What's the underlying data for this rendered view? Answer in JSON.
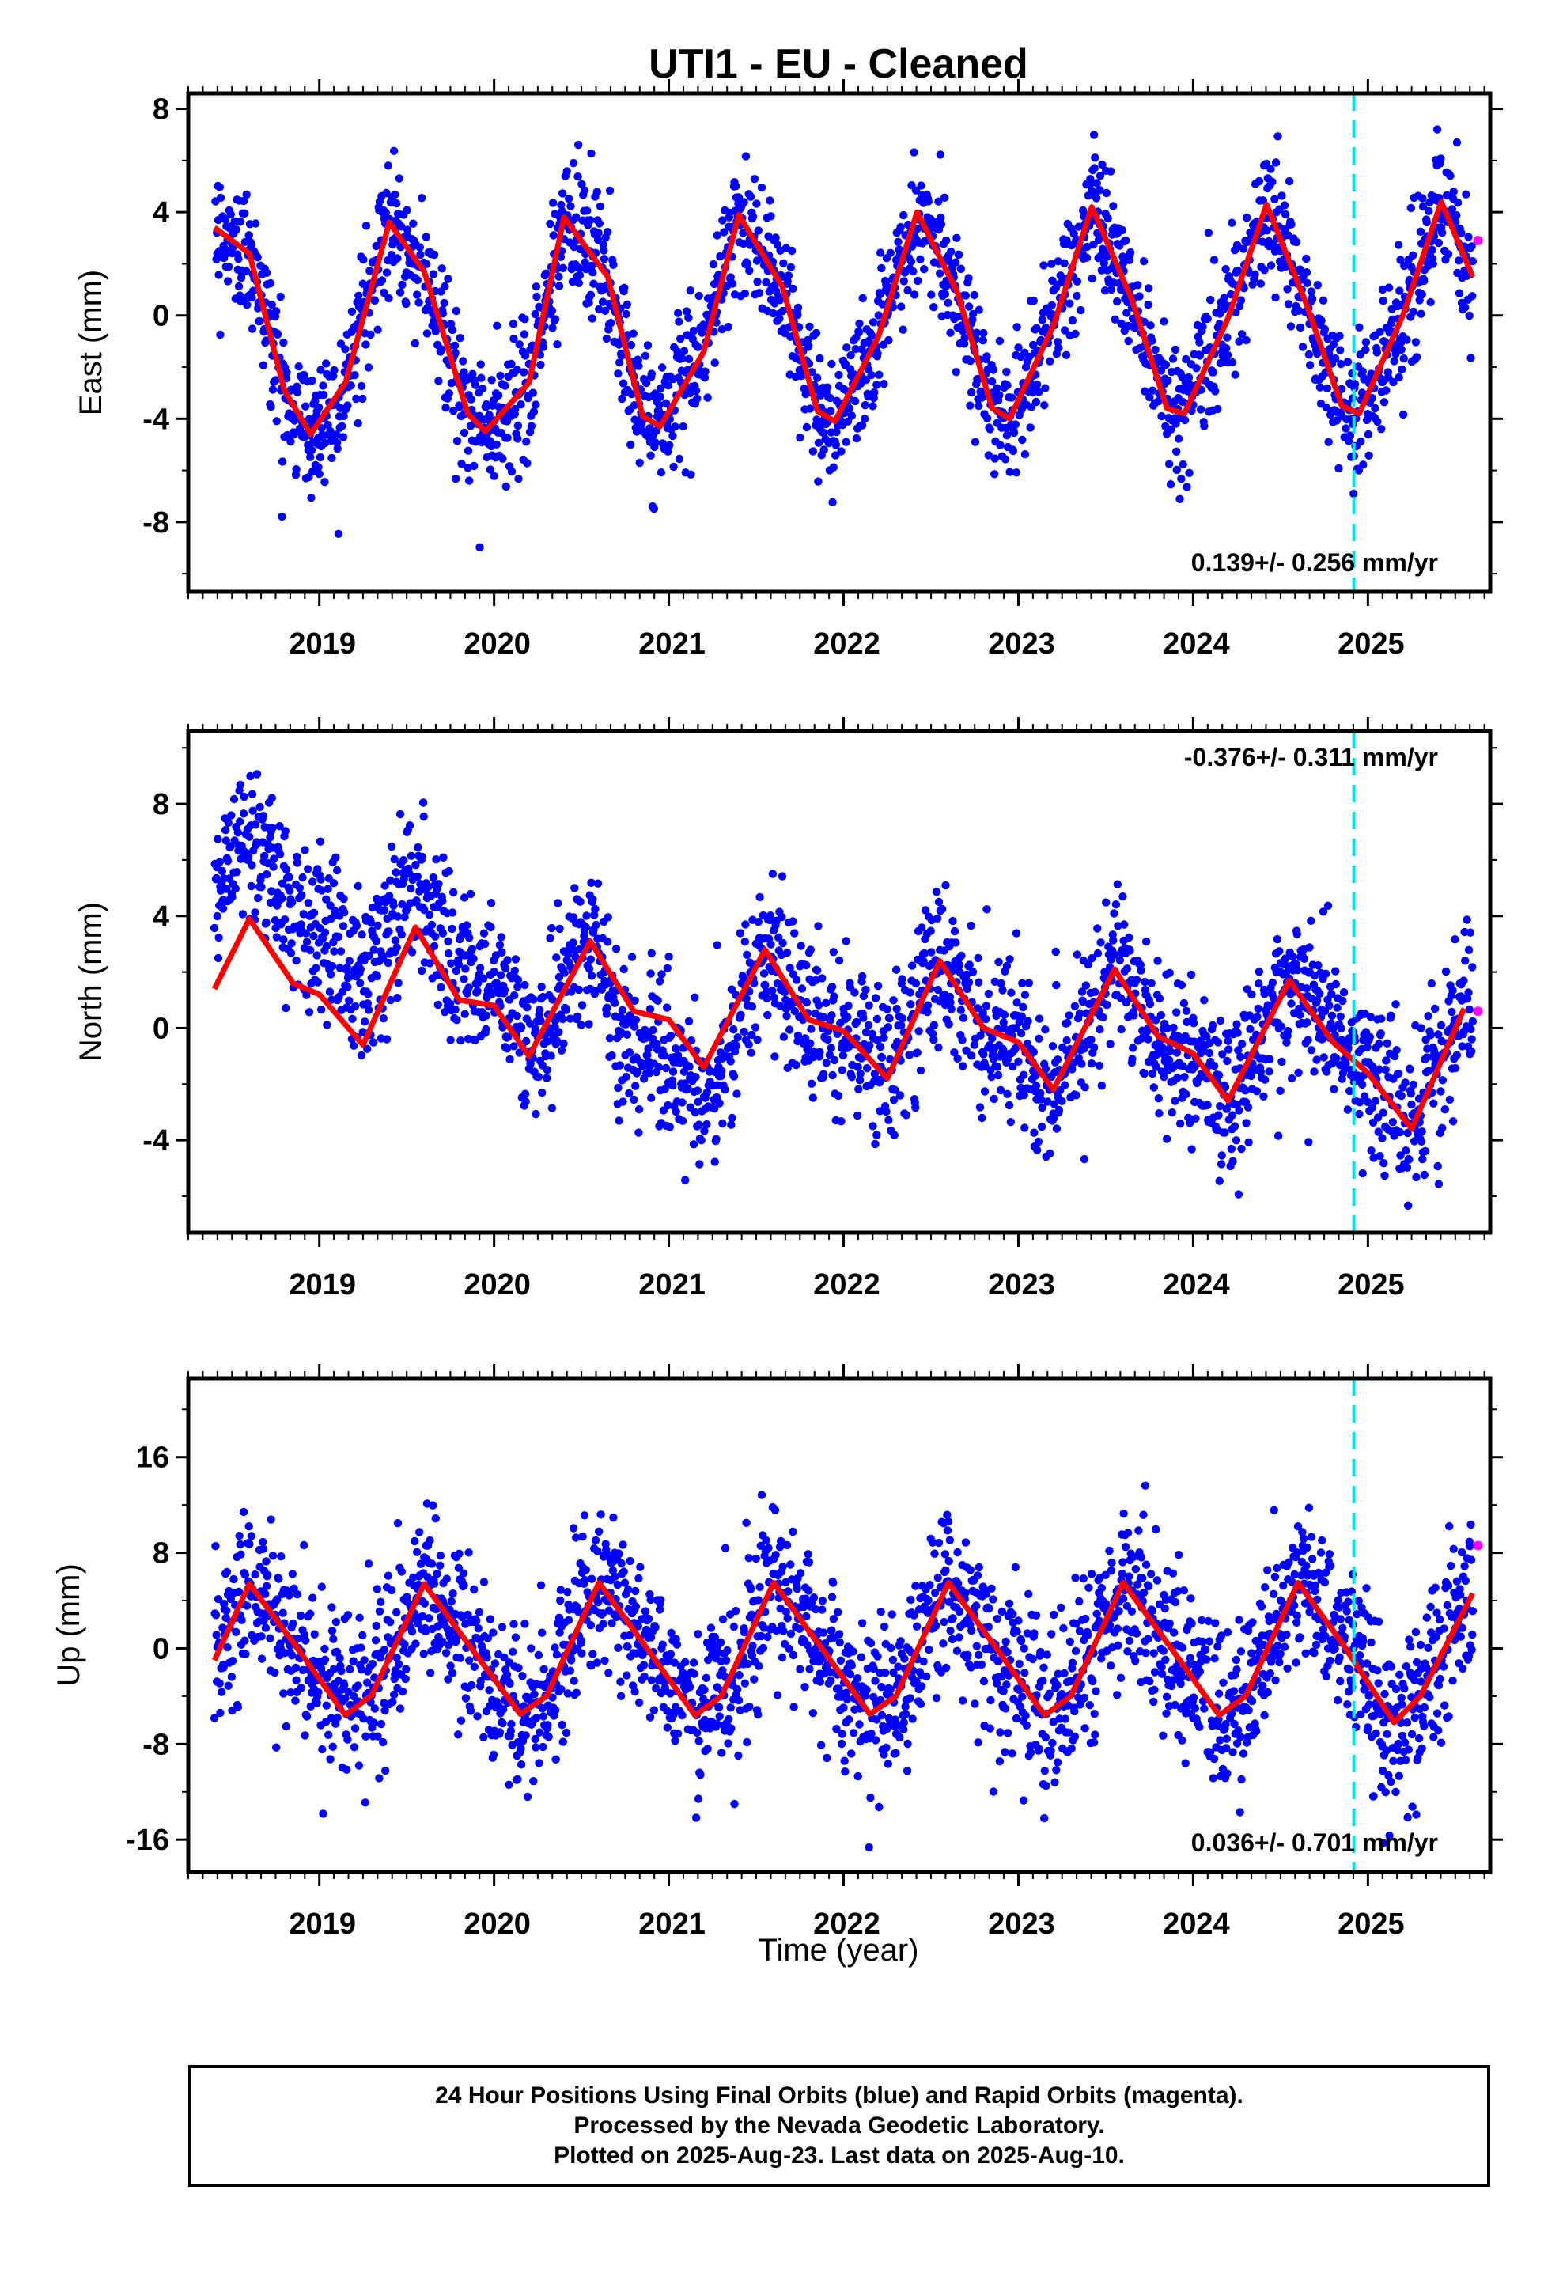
{
  "title": "UTI1  - EU - Cleaned",
  "x_axis_label": "Time (year)",
  "caption": [
    "24 Hour Positions Using Final Orbits (blue) and Rapid Orbits (magenta).",
    "Processed by the Nevada Geodetic Laboratory.",
    "Plotted on 2025-Aug-23. Last data on 2025-Aug-10."
  ],
  "colors": {
    "final_points": "#0000ff",
    "rapid_points": "#ff00ff",
    "model_curve": "#ff0000",
    "event_line": "#00e5ee"
  },
  "chart_data": [
    {
      "type": "scatter",
      "component": "east",
      "ylabel": "East (mm)",
      "xlim": [
        2018.25,
        2025.7
      ],
      "ylim": [
        -10.7,
        8.6
      ],
      "yticks": [
        -8,
        -4,
        0,
        4,
        8
      ],
      "xticks": [
        2019,
        2020,
        2021,
        2022,
        2023,
        2024,
        2025
      ],
      "rate_text": "0.139+/- 0.256 mm/yr",
      "rate_position": "bottom-right",
      "event_line_x": 2024.92,
      "data_range": [
        2018.4,
        2025.6
      ],
      "model_curve": [
        [
          2018.4,
          3.4
        ],
        [
          2018.6,
          2.4
        ],
        [
          2018.8,
          -2.9
        ],
        [
          2018.95,
          -4.6
        ],
        [
          2019.15,
          -2.6
        ],
        [
          2019.4,
          3.6
        ],
        [
          2019.6,
          1.7
        ],
        [
          2019.85,
          -3.8
        ],
        [
          2019.95,
          -4.5
        ],
        [
          2020.2,
          -2.6
        ],
        [
          2020.4,
          3.8
        ],
        [
          2020.65,
          1.5
        ],
        [
          2020.85,
          -3.9
        ],
        [
          2020.95,
          -4.3
        ],
        [
          2021.2,
          -1.4
        ],
        [
          2021.4,
          3.9
        ],
        [
          2021.65,
          1.1
        ],
        [
          2021.85,
          -3.7
        ],
        [
          2021.95,
          -4.1
        ],
        [
          2022.2,
          -0.8
        ],
        [
          2022.42,
          4.0
        ],
        [
          2022.65,
          0.9
        ],
        [
          2022.85,
          -3.6
        ],
        [
          2022.95,
          -4.0
        ],
        [
          2023.2,
          -0.4
        ],
        [
          2023.42,
          4.2
        ],
        [
          2023.65,
          0.6
        ],
        [
          2023.85,
          -3.6
        ],
        [
          2023.95,
          -3.8
        ],
        [
          2024.2,
          -0.1
        ],
        [
          2024.42,
          4.3
        ],
        [
          2024.65,
          0.4
        ],
        [
          2024.85,
          -3.5
        ],
        [
          2024.95,
          -3.8
        ],
        [
          2025.2,
          0.0
        ],
        [
          2025.42,
          4.4
        ],
        [
          2025.6,
          1.5
        ]
      ],
      "rapid_points": [
        [
          2025.63,
          2.9
        ]
      ]
    },
    {
      "type": "scatter",
      "component": "north",
      "ylabel": "North (mm)",
      "xlim": [
        2018.25,
        2025.7
      ],
      "ylim": [
        -7.3,
        10.6
      ],
      "yticks": [
        -4,
        0,
        4,
        8
      ],
      "xticks": [
        2019,
        2020,
        2021,
        2022,
        2023,
        2024,
        2025
      ],
      "rate_text": "-0.376+/- 0.311 mm/yr",
      "rate_position": "top-right",
      "event_line_x": 2024.92,
      "data_range": [
        2018.4,
        2025.6
      ],
      "model_curve": [
        [
          2018.4,
          1.4
        ],
        [
          2018.6,
          3.9
        ],
        [
          2018.85,
          1.6
        ],
        [
          2019.0,
          1.2
        ],
        [
          2019.25,
          -0.6
        ],
        [
          2019.55,
          3.6
        ],
        [
          2019.8,
          1.0
        ],
        [
          2020.0,
          0.8
        ],
        [
          2020.2,
          -1.0
        ],
        [
          2020.55,
          3.1
        ],
        [
          2020.8,
          0.6
        ],
        [
          2021.0,
          0.3
        ],
        [
          2021.2,
          -1.4
        ],
        [
          2021.55,
          2.8
        ],
        [
          2021.8,
          0.3
        ],
        [
          2022.0,
          -0.1
        ],
        [
          2022.25,
          -1.8
        ],
        [
          2022.55,
          2.4
        ],
        [
          2022.8,
          0.0
        ],
        [
          2023.0,
          -0.5
        ],
        [
          2023.2,
          -2.2
        ],
        [
          2023.55,
          2.1
        ],
        [
          2023.8,
          -0.3
        ],
        [
          2024.0,
          -0.9
        ],
        [
          2024.2,
          -2.6
        ],
        [
          2024.55,
          1.7
        ],
        [
          2024.8,
          -0.5
        ],
        [
          2025.0,
          -1.6
        ],
        [
          2025.25,
          -3.6
        ],
        [
          2025.55,
          0.7
        ]
      ],
      "rapid_points": [
        [
          2025.63,
          0.6
        ]
      ]
    },
    {
      "type": "scatter",
      "component": "up",
      "ylabel": "Up (mm)",
      "xlim": [
        2018.25,
        2025.7
      ],
      "ylim": [
        -18.7,
        22.6
      ],
      "yticks": [
        -16,
        -8,
        0,
        8,
        16
      ],
      "xticks": [
        2019,
        2020,
        2021,
        2022,
        2023,
        2024,
        2025
      ],
      "rate_text": "0.036+/- 0.701 mm/yr",
      "rate_position": "bottom-right",
      "event_line_x": 2024.92,
      "data_range": [
        2018.4,
        2025.6
      ],
      "model_curve": [
        [
          2018.4,
          -1.0
        ],
        [
          2018.6,
          5.4
        ],
        [
          2018.85,
          0.5
        ],
        [
          2019.15,
          -5.6
        ],
        [
          2019.3,
          -3.9
        ],
        [
          2019.6,
          5.4
        ],
        [
          2019.85,
          0.4
        ],
        [
          2020.15,
          -5.5
        ],
        [
          2020.3,
          -4.0
        ],
        [
          2020.6,
          5.5
        ],
        [
          2020.85,
          0.5
        ],
        [
          2021.15,
          -5.6
        ],
        [
          2021.3,
          -4.0
        ],
        [
          2021.6,
          5.5
        ],
        [
          2021.85,
          0.5
        ],
        [
          2022.15,
          -5.5
        ],
        [
          2022.3,
          -4.0
        ],
        [
          2022.6,
          5.5
        ],
        [
          2022.85,
          0.5
        ],
        [
          2023.15,
          -5.6
        ],
        [
          2023.3,
          -4.0
        ],
        [
          2023.6,
          5.5
        ],
        [
          2023.85,
          0.5
        ],
        [
          2024.15,
          -5.6
        ],
        [
          2024.3,
          -4.0
        ],
        [
          2024.6,
          5.5
        ],
        [
          2024.85,
          0.5
        ],
        [
          2025.15,
          -6.2
        ],
        [
          2025.3,
          -4.0
        ],
        [
          2025.6,
          4.6
        ]
      ],
      "rapid_points": [
        [
          2025.63,
          8.6
        ]
      ]
    }
  ]
}
